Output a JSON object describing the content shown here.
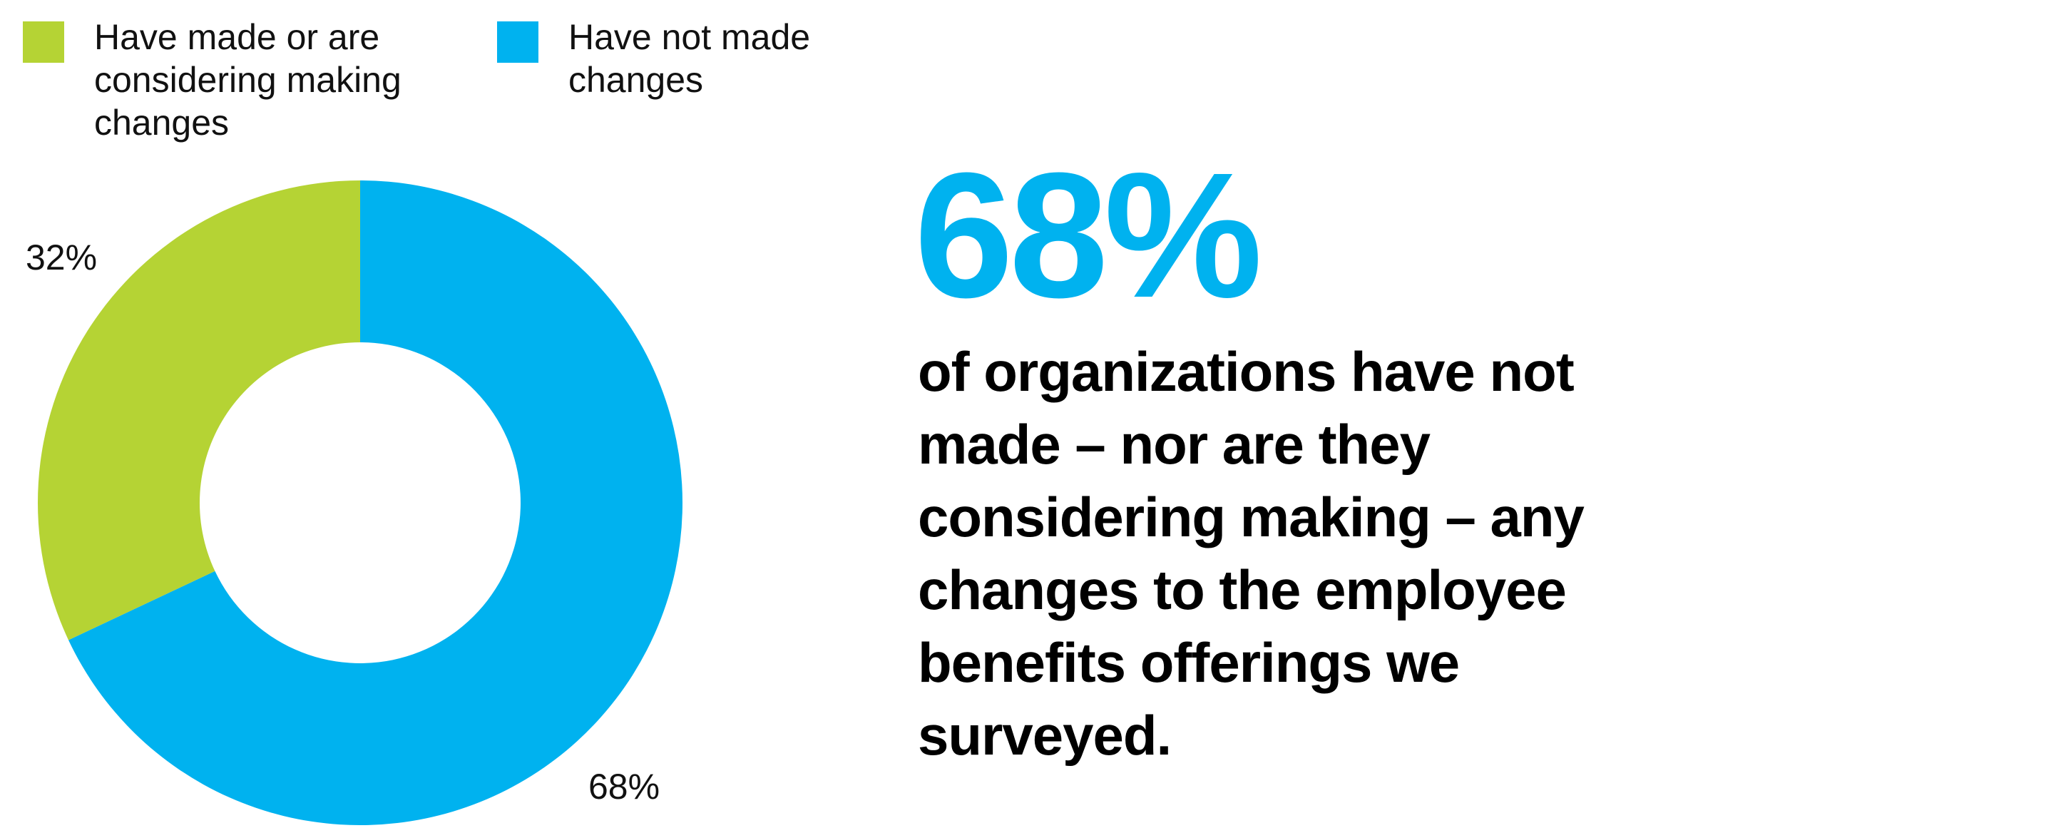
{
  "colors": {
    "considering": "#b5d334",
    "not_made": "#00b2ef",
    "text": "#000000"
  },
  "chart_data": {
    "type": "pie",
    "donut": true,
    "legend_position": "top-left",
    "series": [
      {
        "name": "Have made or are considering making changes",
        "value": 32,
        "label": "32%",
        "color": "#b5d334"
      },
      {
        "name": "Have not made changes",
        "value": 68,
        "label": "68%",
        "color": "#00b2ef"
      }
    ]
  },
  "callout": {
    "big_number": "68%",
    "statement": "of organizations have not made – nor are they considering making – any changes to the employee benefits offerings we surveyed."
  }
}
